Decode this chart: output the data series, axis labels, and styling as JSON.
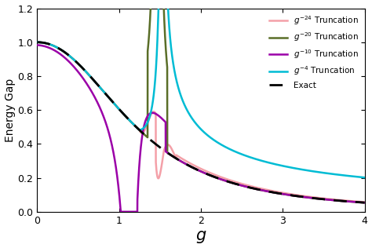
{
  "title": "",
  "xlabel": "g",
  "ylabel": "Energy Gap",
  "xlim": [
    0,
    4
  ],
  "ylim": [
    0,
    1.2
  ],
  "yticks": [
    0.0,
    0.2,
    0.4,
    0.6,
    0.8,
    1.0,
    1.2
  ],
  "xticks": [
    0,
    1,
    2,
    3,
    4
  ],
  "colors": {
    "exact": "#000000",
    "g4": "#00BCD4",
    "g10": "#9B00A8",
    "g20": "#5A6E28",
    "g24": "#F4A0A8"
  },
  "legend": {
    "exact": "Exact",
    "g4": "$g^{-4}$ Truncation",
    "g10": "$g^{-10}$ Truncation",
    "g20": "$g^{-20}$ Truncation",
    "g24": "$g^{-24}$ Truncation"
  },
  "background_color": "#ffffff",
  "line_width": 1.8
}
